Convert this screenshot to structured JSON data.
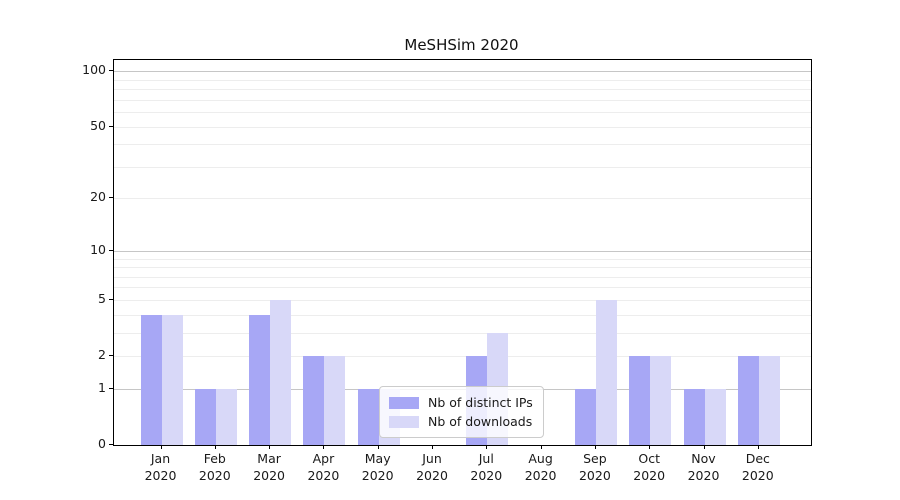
{
  "chart_data": {
    "type": "bar",
    "title": "MeSHSim 2020",
    "categories": [
      "Jan",
      "Feb",
      "Mar",
      "Apr",
      "May",
      "Jun",
      "Jul",
      "Aug",
      "Sep",
      "Oct",
      "Nov",
      "Dec"
    ],
    "category_year": "2020",
    "series": [
      {
        "name": "Nb of distinct IPs",
        "color": "#a7a7f5",
        "values": [
          4,
          1,
          4,
          2,
          1,
          0,
          2,
          0,
          1,
          2,
          1,
          2
        ]
      },
      {
        "name": "Nb of downloads",
        "color": "#d8d8f8",
        "values": [
          4,
          1,
          5,
          2,
          1,
          0,
          3,
          0,
          5,
          2,
          1,
          2
        ]
      }
    ],
    "yscale": "log1p",
    "ylim": [
      0,
      115
    ],
    "yticks": [
      0,
      1,
      2,
      5,
      10,
      20,
      50,
      100
    ],
    "major_gridlines": [
      1,
      10,
      100
    ],
    "minor_gridlines": [
      2,
      3,
      4,
      5,
      6,
      7,
      8,
      9,
      20,
      30,
      40,
      50,
      60,
      70,
      80,
      90
    ],
    "legend": {
      "position": "lower-center"
    },
    "colors": {
      "major_grid": "#c6c6c6",
      "minor_grid": "#ededed",
      "spine": "#000000",
      "text": "#1a1a1a"
    }
  }
}
